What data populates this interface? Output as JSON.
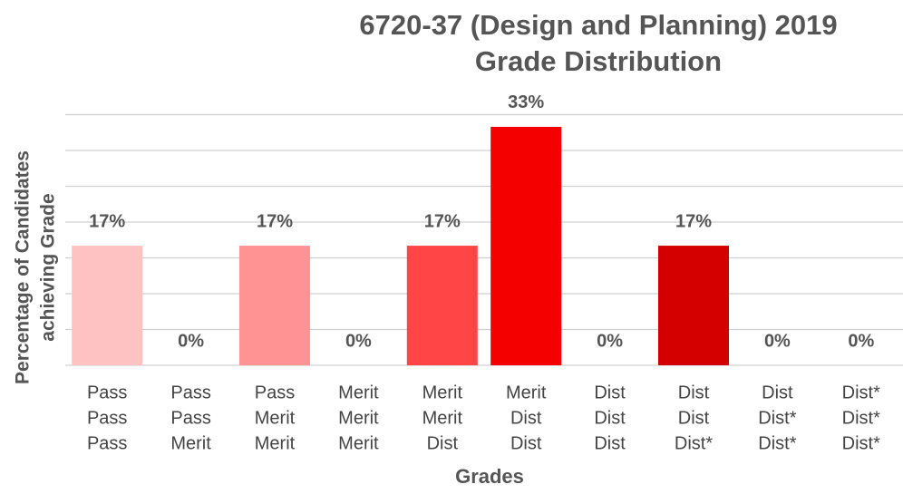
{
  "chart_data": {
    "type": "bar",
    "title": [
      "6720-37 (Design and Planning) 2019",
      "Grade Distribution"
    ],
    "y_label": [
      "Percentage of Candidates",
      "achieving Grade"
    ],
    "x_label": "Grades",
    "categories": [
      [
        "Pass",
        "Pass",
        "Pass"
      ],
      [
        "Pass",
        "Pass",
        "Merit"
      ],
      [
        "Pass",
        "Merit",
        "Merit"
      ],
      [
        "Merit",
        "Merit",
        "Merit"
      ],
      [
        "Merit",
        "Merit",
        "Dist"
      ],
      [
        "Merit",
        "Dist",
        "Dist"
      ],
      [
        "Dist",
        "Dist",
        "Dist"
      ],
      [
        "Dist",
        "Dist",
        "Dist*"
      ],
      [
        "Dist",
        "Dist*",
        "Dist*"
      ],
      [
        "Dist*",
        "Dist*",
        "Dist*"
      ]
    ],
    "values": [
      16.7,
      0,
      16.7,
      0,
      16.7,
      33.3,
      0,
      16.7,
      0,
      0
    ],
    "value_labels": [
      "17%",
      "0%",
      "17%",
      "0%",
      "17%",
      "33%",
      "0%",
      "17%",
      "0%",
      "0%"
    ],
    "colors": [
      "#ffc2c2",
      "#ffc2c2",
      "#ff9393",
      "#ff9393",
      "#ff4545",
      "#f50000",
      "#f50000",
      "#d40000",
      "#d40000",
      "#d40000"
    ],
    "ylim": [
      0,
      35
    ],
    "yticks": [
      0,
      5,
      10,
      15,
      20,
      25,
      30,
      35
    ],
    "grid": true
  }
}
